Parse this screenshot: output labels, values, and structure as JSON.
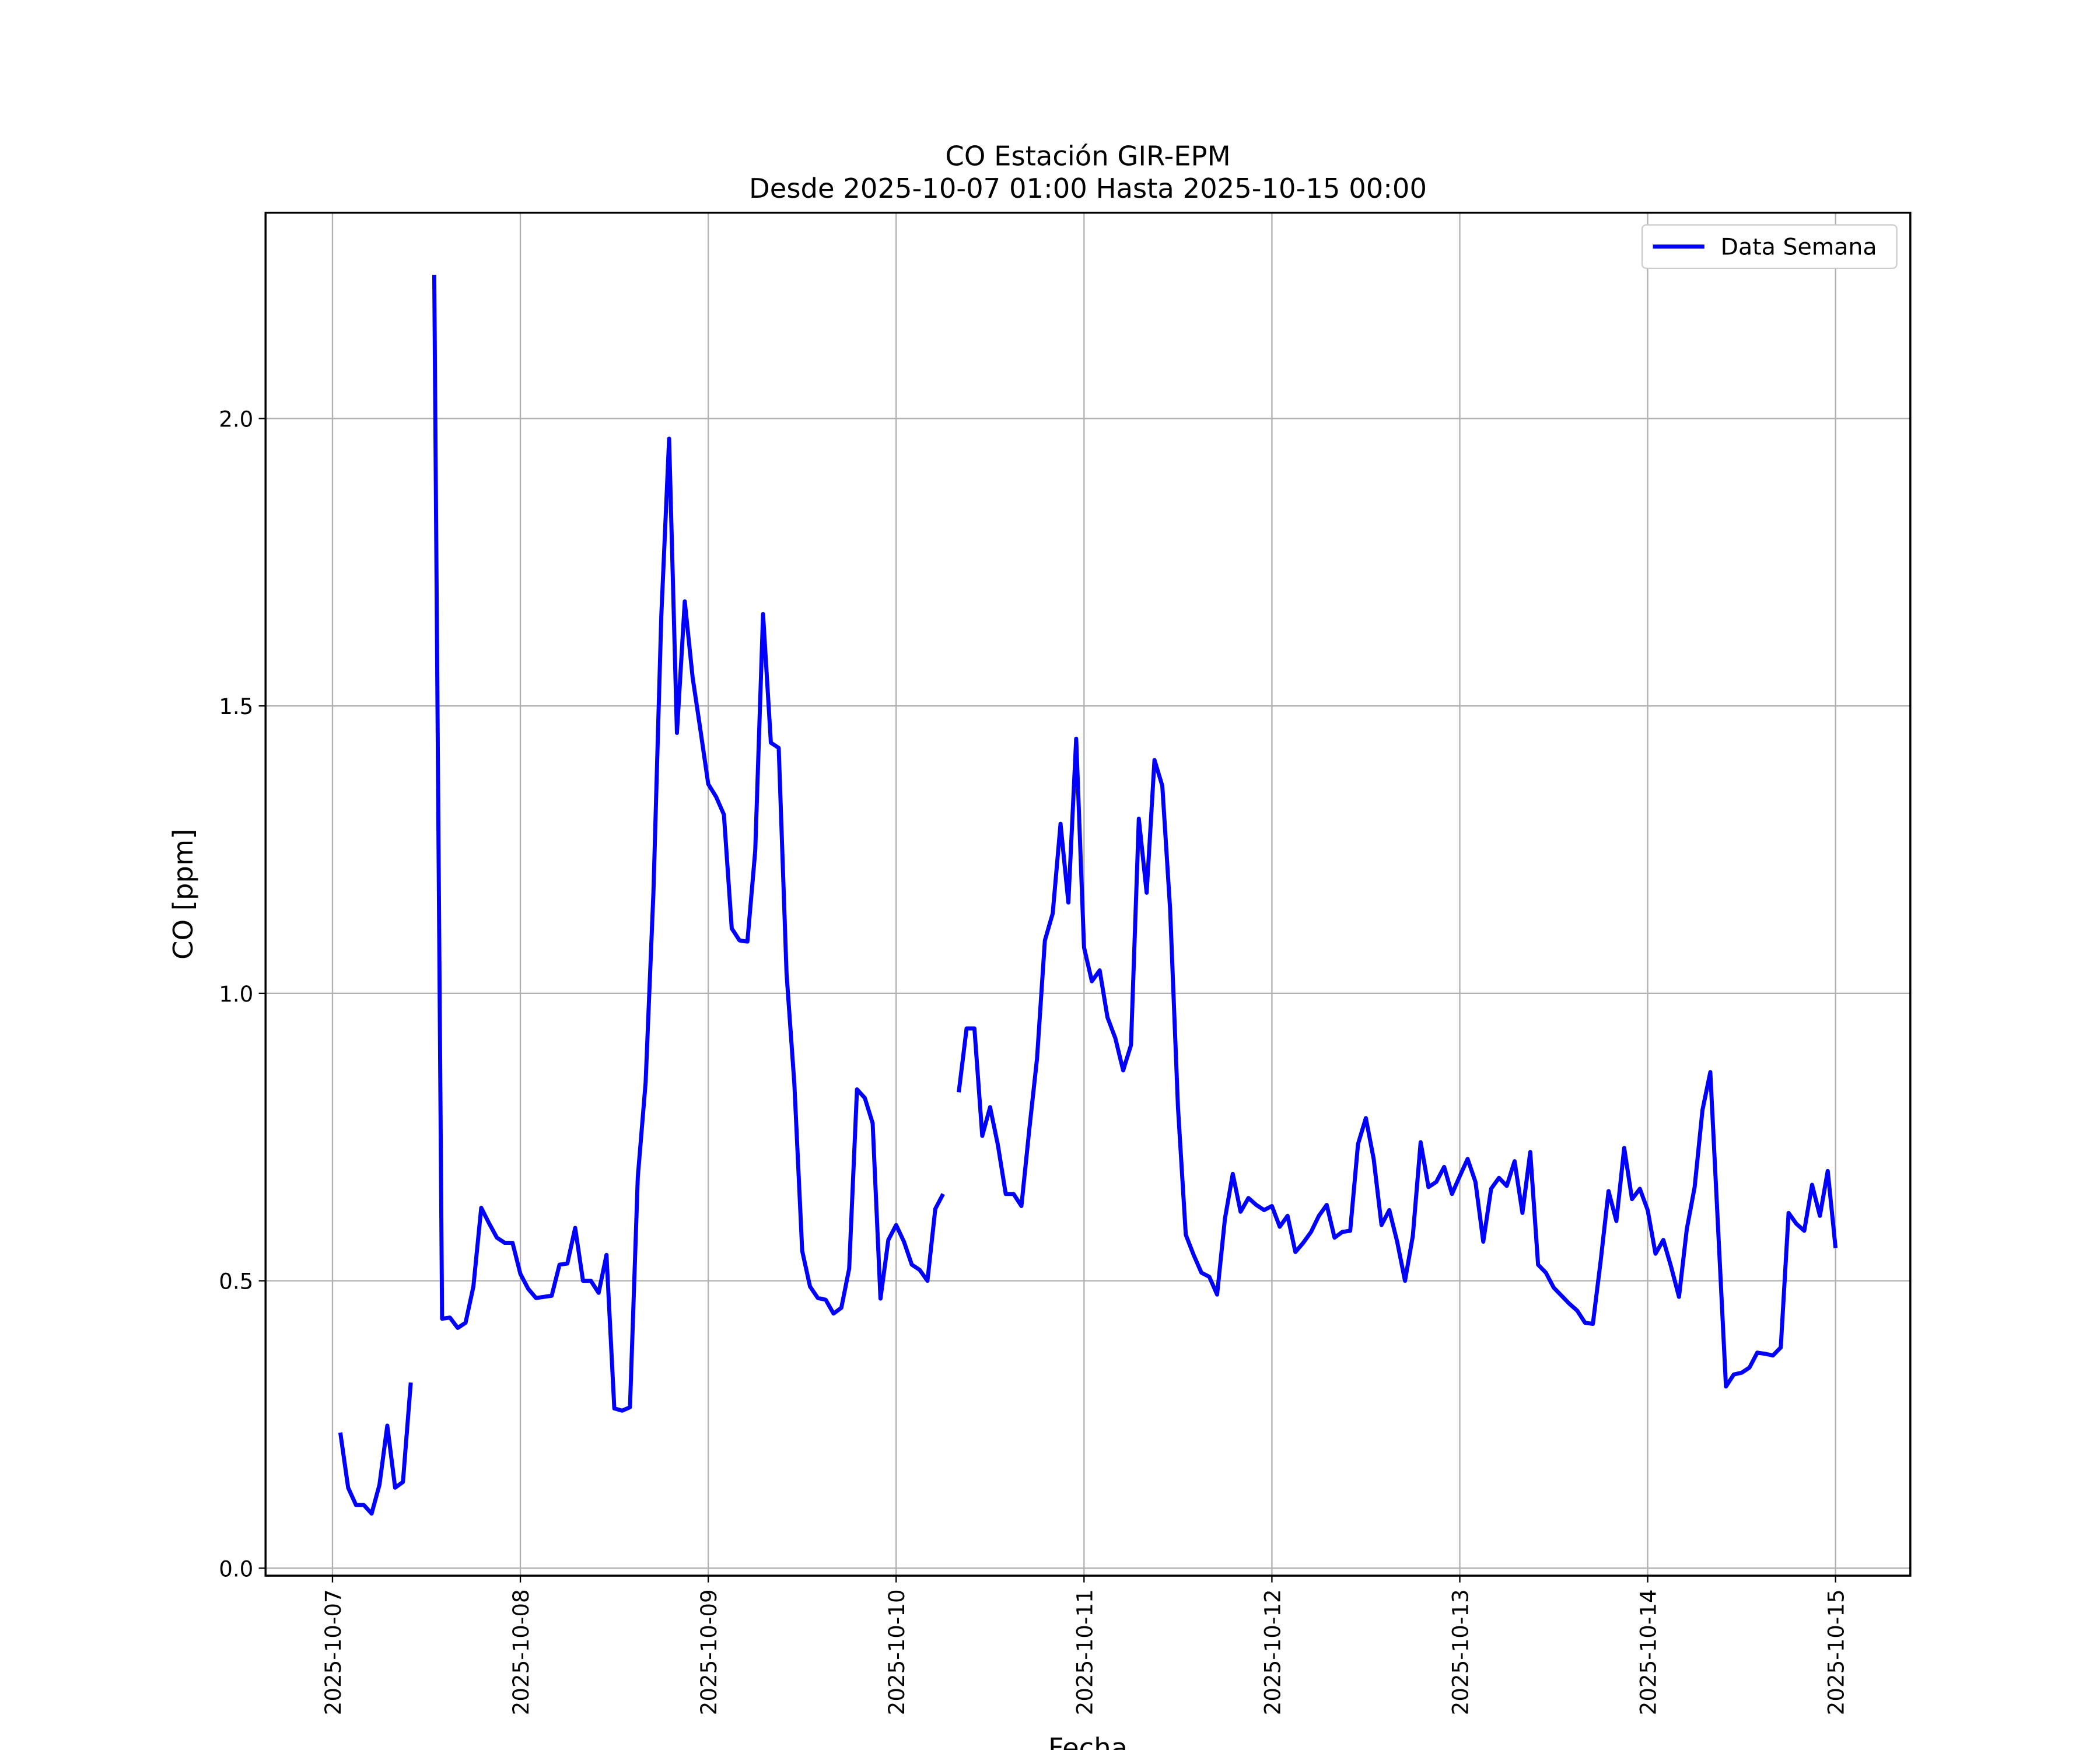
{
  "chart_data": {
    "type": "line",
    "title": "CO Estación GIR-EPM",
    "subtitle": "Desde 2025-10-07 01:00 Hasta 2025-10-15 00:00",
    "xlabel": "Fecha",
    "ylabel": "CO [ppm]",
    "x": [
      "2025-10-07 01:00",
      "2025-10-07 02:00",
      "2025-10-07 03:00",
      "2025-10-07 04:00",
      "2025-10-07 05:00",
      "2025-10-07 06:00",
      "2025-10-07 07:00",
      "2025-10-07 08:00",
      "2025-10-07 09:00",
      "2025-10-07 10:00",
      "2025-10-07 11:00",
      "2025-10-07 12:00",
      "2025-10-07 13:00",
      "2025-10-07 14:00",
      "2025-10-07 15:00",
      "2025-10-07 16:00",
      "2025-10-07 17:00",
      "2025-10-07 18:00",
      "2025-10-07 19:00",
      "2025-10-07 20:00",
      "2025-10-07 21:00",
      "2025-10-07 22:00",
      "2025-10-07 23:00",
      "2025-10-08 00:00",
      "2025-10-08 01:00",
      "2025-10-08 02:00",
      "2025-10-08 03:00",
      "2025-10-08 04:00",
      "2025-10-08 05:00",
      "2025-10-08 06:00",
      "2025-10-08 07:00",
      "2025-10-08 08:00",
      "2025-10-08 09:00",
      "2025-10-08 10:00",
      "2025-10-08 11:00",
      "2025-10-08 12:00",
      "2025-10-08 13:00",
      "2025-10-08 14:00",
      "2025-10-08 15:00",
      "2025-10-08 16:00",
      "2025-10-08 17:00",
      "2025-10-08 18:00",
      "2025-10-08 19:00",
      "2025-10-08 20:00",
      "2025-10-08 21:00",
      "2025-10-08 22:00",
      "2025-10-08 23:00",
      "2025-10-09 00:00",
      "2025-10-09 01:00",
      "2025-10-09 02:00",
      "2025-10-09 03:00",
      "2025-10-09 04:00",
      "2025-10-09 05:00",
      "2025-10-09 06:00",
      "2025-10-09 07:00",
      "2025-10-09 08:00",
      "2025-10-09 09:00",
      "2025-10-09 10:00",
      "2025-10-09 11:00",
      "2025-10-09 12:00",
      "2025-10-09 13:00",
      "2025-10-09 14:00",
      "2025-10-09 15:00",
      "2025-10-09 16:00",
      "2025-10-09 17:00",
      "2025-10-09 18:00",
      "2025-10-09 19:00",
      "2025-10-09 20:00",
      "2025-10-09 21:00",
      "2025-10-09 22:00",
      "2025-10-09 23:00",
      "2025-10-10 00:00",
      "2025-10-10 01:00",
      "2025-10-10 02:00",
      "2025-10-10 03:00",
      "2025-10-10 04:00",
      "2025-10-10 05:00",
      "2025-10-10 06:00",
      "2025-10-10 07:00",
      "2025-10-10 08:00",
      "2025-10-10 09:00",
      "2025-10-10 10:00",
      "2025-10-10 11:00",
      "2025-10-10 12:00",
      "2025-10-10 13:00",
      "2025-10-10 14:00",
      "2025-10-10 15:00",
      "2025-10-10 16:00",
      "2025-10-10 17:00",
      "2025-10-10 18:00",
      "2025-10-10 19:00",
      "2025-10-10 20:00",
      "2025-10-10 21:00",
      "2025-10-10 22:00",
      "2025-10-10 23:00",
      "2025-10-11 00:00",
      "2025-10-11 01:00",
      "2025-10-11 02:00",
      "2025-10-11 03:00",
      "2025-10-11 04:00",
      "2025-10-11 05:00",
      "2025-10-11 06:00",
      "2025-10-11 07:00",
      "2025-10-11 08:00",
      "2025-10-11 09:00",
      "2025-10-11 10:00",
      "2025-10-11 11:00",
      "2025-10-11 12:00",
      "2025-10-11 13:00",
      "2025-10-11 14:00",
      "2025-10-11 15:00",
      "2025-10-11 16:00",
      "2025-10-11 17:00",
      "2025-10-11 18:00",
      "2025-10-11 19:00",
      "2025-10-11 20:00",
      "2025-10-11 21:00",
      "2025-10-11 22:00",
      "2025-10-11 23:00",
      "2025-10-12 00:00",
      "2025-10-12 01:00",
      "2025-10-12 02:00",
      "2025-10-12 03:00",
      "2025-10-12 04:00",
      "2025-10-12 05:00",
      "2025-10-12 06:00",
      "2025-10-12 07:00",
      "2025-10-12 08:00",
      "2025-10-12 09:00",
      "2025-10-12 10:00",
      "2025-10-12 11:00",
      "2025-10-12 12:00",
      "2025-10-12 13:00",
      "2025-10-12 14:00",
      "2025-10-12 15:00",
      "2025-10-12 16:00",
      "2025-10-12 17:00",
      "2025-10-12 18:00",
      "2025-10-12 19:00",
      "2025-10-12 20:00",
      "2025-10-12 21:00",
      "2025-10-12 22:00",
      "2025-10-12 23:00",
      "2025-10-13 00:00",
      "2025-10-13 01:00",
      "2025-10-13 02:00",
      "2025-10-13 03:00",
      "2025-10-13 04:00",
      "2025-10-13 05:00",
      "2025-10-13 06:00",
      "2025-10-13 07:00",
      "2025-10-13 08:00",
      "2025-10-13 09:00",
      "2025-10-13 10:00",
      "2025-10-13 11:00",
      "2025-10-13 12:00",
      "2025-10-13 13:00",
      "2025-10-13 14:00",
      "2025-10-13 15:00",
      "2025-10-13 16:00",
      "2025-10-13 17:00",
      "2025-10-13 18:00",
      "2025-10-13 19:00",
      "2025-10-13 20:00",
      "2025-10-13 21:00",
      "2025-10-13 22:00",
      "2025-10-13 23:00",
      "2025-10-14 00:00",
      "2025-10-14 01:00",
      "2025-10-14 02:00",
      "2025-10-14 03:00",
      "2025-10-14 04:00",
      "2025-10-14 05:00",
      "2025-10-14 06:00",
      "2025-10-14 07:00",
      "2025-10-14 08:00",
      "2025-10-14 09:00",
      "2025-10-14 10:00",
      "2025-10-14 11:00",
      "2025-10-14 12:00",
      "2025-10-14 13:00",
      "2025-10-14 14:00",
      "2025-10-14 15:00",
      "2025-10-14 16:00",
      "2025-10-14 17:00",
      "2025-10-14 18:00",
      "2025-10-14 19:00",
      "2025-10-14 20:00",
      "2025-10-14 21:00",
      "2025-10-14 22:00",
      "2025-10-14 23:00",
      "2025-10-15 00:00"
    ],
    "series": [
      {
        "name": "Data Semana",
        "color": "#0000ff",
        "values": [
          0.236,
          0.14,
          0.11,
          0.11,
          0.095,
          0.145,
          0.248,
          0.14,
          0.15,
          0.323,
          null,
          null,
          2.25,
          0.434,
          0.436,
          0.418,
          0.427,
          0.49,
          0.627,
          0.6,
          0.575,
          0.566,
          0.566,
          0.512,
          0.486,
          0.47,
          0.472,
          0.474,
          0.528,
          0.53,
          0.592,
          0.5,
          0.5,
          0.479,
          0.545,
          0.278,
          0.274,
          0.28,
          0.68,
          0.845,
          1.177,
          1.656,
          1.965,
          1.453,
          1.682,
          1.55,
          1.458,
          1.364,
          1.342,
          1.311,
          1.113,
          1.092,
          1.09,
          1.248,
          1.66,
          1.436,
          1.427,
          1.035,
          0.842,
          0.552,
          0.49,
          0.47,
          0.467,
          0.443,
          0.453,
          0.521,
          0.833,
          0.818,
          0.774,
          0.469,
          0.571,
          0.597,
          0.568,
          0.528,
          0.519,
          0.5,
          0.625,
          0.651,
          null,
          0.828,
          0.939,
          0.939,
          0.752,
          0.802,
          0.736,
          0.651,
          0.651,
          0.63,
          0.762,
          0.887,
          1.092,
          1.139,
          1.295,
          1.158,
          1.443,
          1.08,
          1.021,
          1.04,
          0.958,
          0.922,
          0.866,
          0.91,
          1.304,
          1.175,
          1.406,
          1.361,
          1.146,
          0.802,
          0.58,
          0.545,
          0.514,
          0.507,
          0.476,
          0.608,
          0.686,
          0.62,
          0.644,
          0.632,
          0.623,
          0.63,
          0.594,
          0.613,
          0.55,
          0.566,
          0.585,
          0.613,
          0.632,
          0.575,
          0.585,
          0.587,
          0.738,
          0.783,
          0.712,
          0.597,
          0.623,
          0.568,
          0.5,
          0.578,
          0.741,
          0.663,
          0.672,
          0.698,
          0.651,
          0.682,
          0.712,
          0.672,
          0.568,
          0.66,
          0.679,
          0.665,
          0.708,
          0.618,
          0.724,
          0.528,
          0.514,
          0.488,
          0.474,
          0.46,
          0.448,
          0.427,
          0.425,
          0.535,
          0.656,
          0.604,
          0.731,
          0.642,
          0.66,
          0.623,
          0.547,
          0.571,
          0.524,
          0.472,
          0.59,
          0.663,
          0.797,
          0.863,
          0.59,
          0.316,
          0.337,
          0.34,
          0.349,
          0.375,
          0.373,
          0.37,
          0.384,
          0.618,
          0.599,
          0.587,
          0.667,
          0.613,
          0.691,
          0.557
        ]
      }
    ],
    "xlim": [
      "2025-10-06 15:27",
      "2025-10-15 09:33"
    ],
    "xticks": [
      "2025-10-07",
      "2025-10-08",
      "2025-10-09",
      "2025-10-10",
      "2025-10-11",
      "2025-10-12",
      "2025-10-13",
      "2025-10-14",
      "2025-10-15"
    ],
    "ylim": [
      -0.013,
      2.358
    ],
    "yticks": [
      {
        "value": 0,
        "label": "0.0"
      },
      0.5,
      {
        "value": 1,
        "label": "1.0"
      },
      1.5,
      {
        "value": 2,
        "label": "2.0"
      }
    ],
    "grid": true,
    "legend": "upper right"
  }
}
